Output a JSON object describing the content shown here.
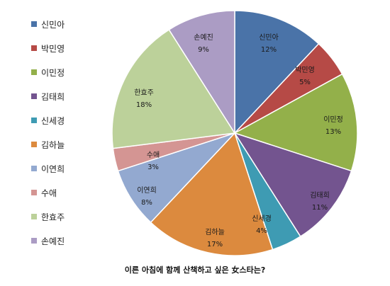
{
  "chart_data": {
    "type": "pie",
    "title": "이른 아침에 함께 산책하고 싶은 女스타는?",
    "legend_position": "left",
    "slices": [
      {
        "label": "신민아",
        "value": 12,
        "pct_label": "12%",
        "color": "#4a73a8"
      },
      {
        "label": "박민영",
        "value": 5,
        "pct_label": "5%",
        "color": "#b64a46"
      },
      {
        "label": "이민정",
        "value": 13,
        "pct_label": "13%",
        "color": "#93b04a"
      },
      {
        "label": "김태희",
        "value": 11,
        "pct_label": "11%",
        "color": "#73548f"
      },
      {
        "label": "신세경",
        "value": 4,
        "pct_label": "4%",
        "color": "#3e9bb3"
      },
      {
        "label": "김하늘",
        "value": 17,
        "pct_label": "17%",
        "color": "#dc8a3e"
      },
      {
        "label": "이연희",
        "value": 8,
        "pct_label": "8%",
        "color": "#93a9d0"
      },
      {
        "label": "수애",
        "value": 3,
        "pct_label": "3%",
        "color": "#d49593"
      },
      {
        "label": "한효주",
        "value": 18,
        "pct_label": "18%",
        "color": "#bcd19a"
      },
      {
        "label": "손예진",
        "value": 9,
        "pct_label": "9%",
        "color": "#ab9cc4"
      }
    ]
  }
}
